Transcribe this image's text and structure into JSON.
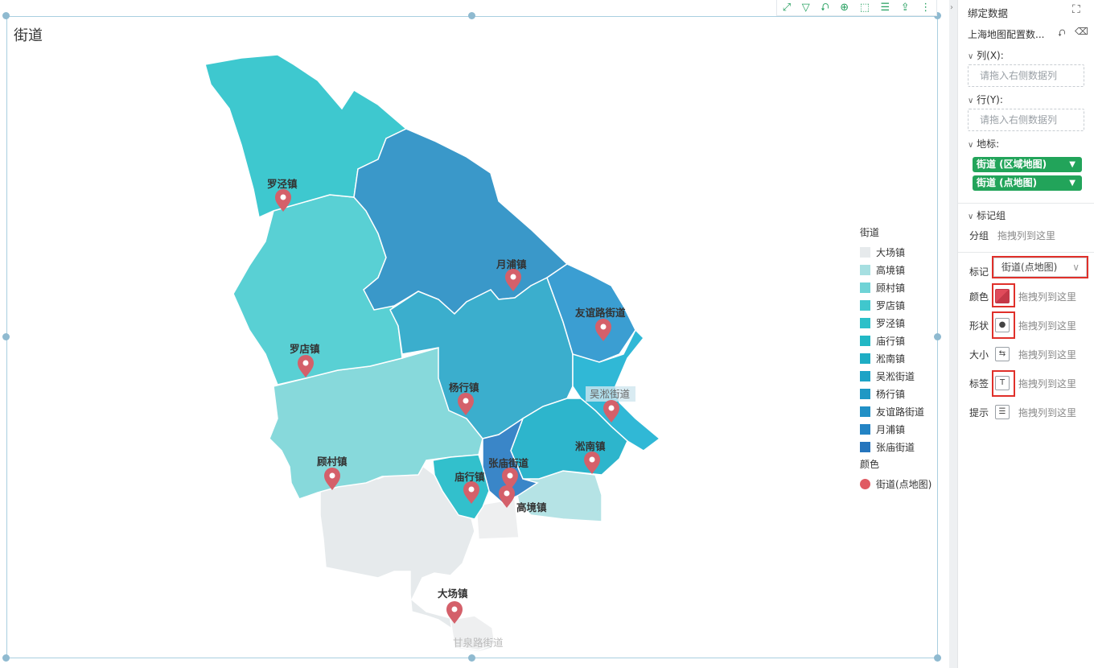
{
  "chart": {
    "title": "街道",
    "toolbar_icons": [
      "fullscreen-icon",
      "filter-icon",
      "swap-icon",
      "zoom-icon",
      "select-icon",
      "list-icon",
      "export-icon",
      "more-icon"
    ]
  },
  "map": {
    "regions": [
      {
        "name": "罗泾镇",
        "color": "#3ec8cf",
        "label_dim": false
      },
      {
        "name": "月浦镇",
        "color": "#3a98c9",
        "label_dim": false
      },
      {
        "name": "罗店镇",
        "color": "#59d0d4",
        "label_dim": false
      },
      {
        "name": "顾村镇",
        "color": "#87d9db",
        "label_dim": false
      },
      {
        "name": "杨行镇",
        "color": "#3baecd",
        "label_dim": false
      },
      {
        "name": "友谊路街道",
        "color": "#3b9ed2",
        "label_dim": false
      },
      {
        "name": "吴淞街道",
        "color": "#30b8d6",
        "label_dim": false
      },
      {
        "name": "淞南镇",
        "color": "#2db5cc",
        "label_dim": false
      },
      {
        "name": "张庙街道",
        "color": "#3a86c8",
        "label_dim": false
      },
      {
        "name": "庙行镇",
        "color": "#32c0cc",
        "label_dim": false
      },
      {
        "name": "高境镇",
        "color": "#b5e3e5",
        "label_dim": false
      },
      {
        "name": "大场镇",
        "color": "#e6eaec",
        "label_dim": false
      }
    ],
    "extra_labels": [
      "甘泉路街道"
    ]
  },
  "legend": {
    "title": "街道",
    "items": [
      {
        "label": "大场镇",
        "color": "#e6eaec"
      },
      {
        "label": "高境镇",
        "color": "#a6dfe1"
      },
      {
        "label": "顾村镇",
        "color": "#6fd3d6"
      },
      {
        "label": "罗店镇",
        "color": "#40c7cd"
      },
      {
        "label": "罗泾镇",
        "color": "#2cc0c9"
      },
      {
        "label": "庙行镇",
        "color": "#22b8c5"
      },
      {
        "label": "淞南镇",
        "color": "#1eadc4"
      },
      {
        "label": "吴淞街道",
        "color": "#1da3c6"
      },
      {
        "label": "杨行镇",
        "color": "#1f98c4"
      },
      {
        "label": "友谊路街道",
        "color": "#2190c6"
      },
      {
        "label": "月浦镇",
        "color": "#2383c4"
      },
      {
        "label": "张庙街道",
        "color": "#2575bd"
      }
    ],
    "color_title": "颜色",
    "color_item": {
      "label": "街道(点地图)",
      "color": "#e05a62"
    }
  },
  "panel": {
    "title": "绑定数据",
    "dataset": "上海地图配置数...",
    "columns_label": "列(X):",
    "columns_placeholder": "请拖入右侧数据列",
    "rows_label": "行(Y):",
    "rows_placeholder": "请拖入右侧数据列",
    "landmark_label": "地标:",
    "landmark_pills": [
      "街道 (区域地图)",
      "街道 (点地图)"
    ],
    "mark_group_label": "标记组",
    "group_label": "分组",
    "group_hint": "拖拽列到这里",
    "mark_label": "标记",
    "mark_value": "街道(点地图)",
    "props": [
      {
        "label": "颜色",
        "hint": "拖拽列到这里",
        "icon": "color-icon"
      },
      {
        "label": "形状",
        "hint": "拖拽列到这里",
        "icon": "shape-icon"
      },
      {
        "label": "大小",
        "hint": "拖拽列到这里",
        "icon": "size-icon"
      },
      {
        "label": "标签",
        "hint": "拖拽列到这里",
        "icon": "label-icon"
      },
      {
        "label": "提示",
        "hint": "拖拽列到这里",
        "icon": "tooltip-icon"
      }
    ]
  }
}
